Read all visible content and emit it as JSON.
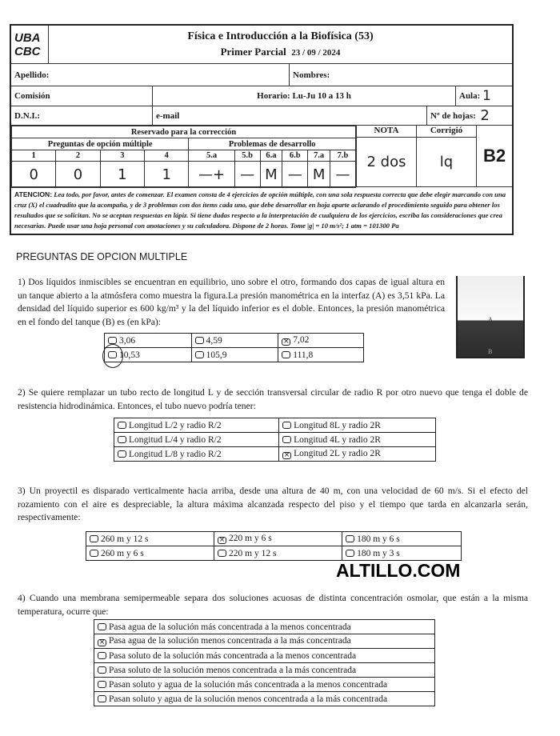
{
  "header": {
    "logo_line1": "UBA",
    "logo_line2": "CBC",
    "course": "Física e Introducción a la Biofísica (53)",
    "exam": "Primer Parcial",
    "date": "23 / 09 / 2024",
    "apellido_label": "Apellido:",
    "nombres_label": "Nombres:",
    "comision_label": "Comisión",
    "horario": "Horario: Lu-Ju 10 a 13  h",
    "aula_label": "Aula:",
    "aula_value": "1",
    "dni_label": "D.N.I.:",
    "email_label": "e-mail",
    "hojas_label": "Nº de hojas:",
    "hojas_value": "2"
  },
  "grading": {
    "reserved": "Reservado para la corrección",
    "mc_label": "Preguntas de opción múltiple",
    "dev_label": "Problemas de desarrollo",
    "nota_label": "NOTA",
    "corrigio_label": "Corrigió",
    "columns": [
      "1",
      "2",
      "3",
      "4",
      "5.a",
      "5.b",
      "6.a",
      "6.b",
      "7.a",
      "7.b"
    ],
    "marks": [
      "0",
      "0",
      "1",
      "1",
      "—+",
      "—",
      "M",
      "—",
      "M",
      "—"
    ],
    "nota": "2 dos",
    "corrigio": "lq",
    "tema": "B2"
  },
  "attention": {
    "label": "ATENCION:",
    "text": "Lea todo, por favor, antes de comenzar. El examen consta de 4 ejercicios de opción múltiple, con una sola respuesta correcta que debe elegir marcando con una cruz (X) el cuadradito que la acompaña, y de 3 problemas con dos ítems cada uno, que debe desarrollar en hoja aparte aclarando el procedimiento seguido para obtener los resultados que se solicitan. No se aceptan respuestas en lápiz. Si tiene dudas respecto a la interpretación de cualquiera de los ejercicios, escriba las consideraciones que crea necesarias. Puede usar una hoja personal con anotaciones y su calculadora. Dispone de 2 horas. Tome |g| = 10 m/s²; 1 atm = 101300 Pa"
  },
  "section_title": "PREGUNTAS DE OPCION MULTIPLE",
  "questions": [
    {
      "text": "1) Dos líquidos inmiscibles se encuentran en equilibrio, uno sobre el otro, formando dos capas de igual altura en un tanque abierto a la atmósfera como muestra la figura.La presión manométrica en la interfaz (A) es 3,51 kPa. La densidad del líquido superior es 600 kg/m³ y la del líquido inferior es el doble. Entonces, la presión manométrica en el fondo del tanque (B) es (en kPa):",
      "options": [
        "3,06",
        "4,59",
        "7,02",
        "10,53",
        "105,9",
        "111,8"
      ],
      "checked": 2,
      "circled": 3,
      "figure_labels": [
        "A",
        "B"
      ]
    },
    {
      "text": "2) Se quiere remplazar un tubo recto de longitud L y de sección transversal circular de radio R por otro nuevo que tenga el doble de resistencia hidrodinámica. Entonces, el tubo nuevo podría tener:",
      "options": [
        "Longitud L/2 y radio R/2",
        "Longitud 8L  y radio 2R",
        "Longitud L/4  y radio R/2",
        "Longitud 4L y radio 2R",
        "Longitud L/8  y radio R/2",
        "Longitud 2L  y radio 2R"
      ],
      "checked": 5,
      "circled": 4
    },
    {
      "text": "3)  Un proyectil es disparado verticalmente hacia arriba, desde una altura de 40 m, con una velocidad de 60 m/s. Si el efecto del rozamiento con el aire es despreciable, la altura máxima alcanzada respecto del piso y el tiempo que tarda en alcanzarla serán, respectivamente:",
      "options": [
        "260 m y 12 s",
        "220 m y 6 s",
        "180 m y 6 s",
        "260 m y 6 s",
        "220 m y 12 s",
        "180 m y 3 s"
      ],
      "checked": 1
    },
    {
      "text": "4) Cuando una membrana semipermeable separa dos soluciones acuosas de distinta concentración osmolar, que están a la misma temperatura, ocurre que:",
      "options": [
        "Pasa agua de la solución más concentrada a la menos concentrada",
        "Pasa agua de la solución menos concentrada a la más concentrada",
        "Pasa soluto de la solución más concentrada a la menos concentrada",
        "Pasa soluto de la solución menos concentrada a la más concentrada",
        "Pasan soluto y agua de la solución más concentrada a la menos concentrada",
        "Pasan soluto y agua de la solución menos concentrada a la más concentrada"
      ],
      "checked": 1
    }
  ],
  "watermark": "ALTILLO.COM"
}
